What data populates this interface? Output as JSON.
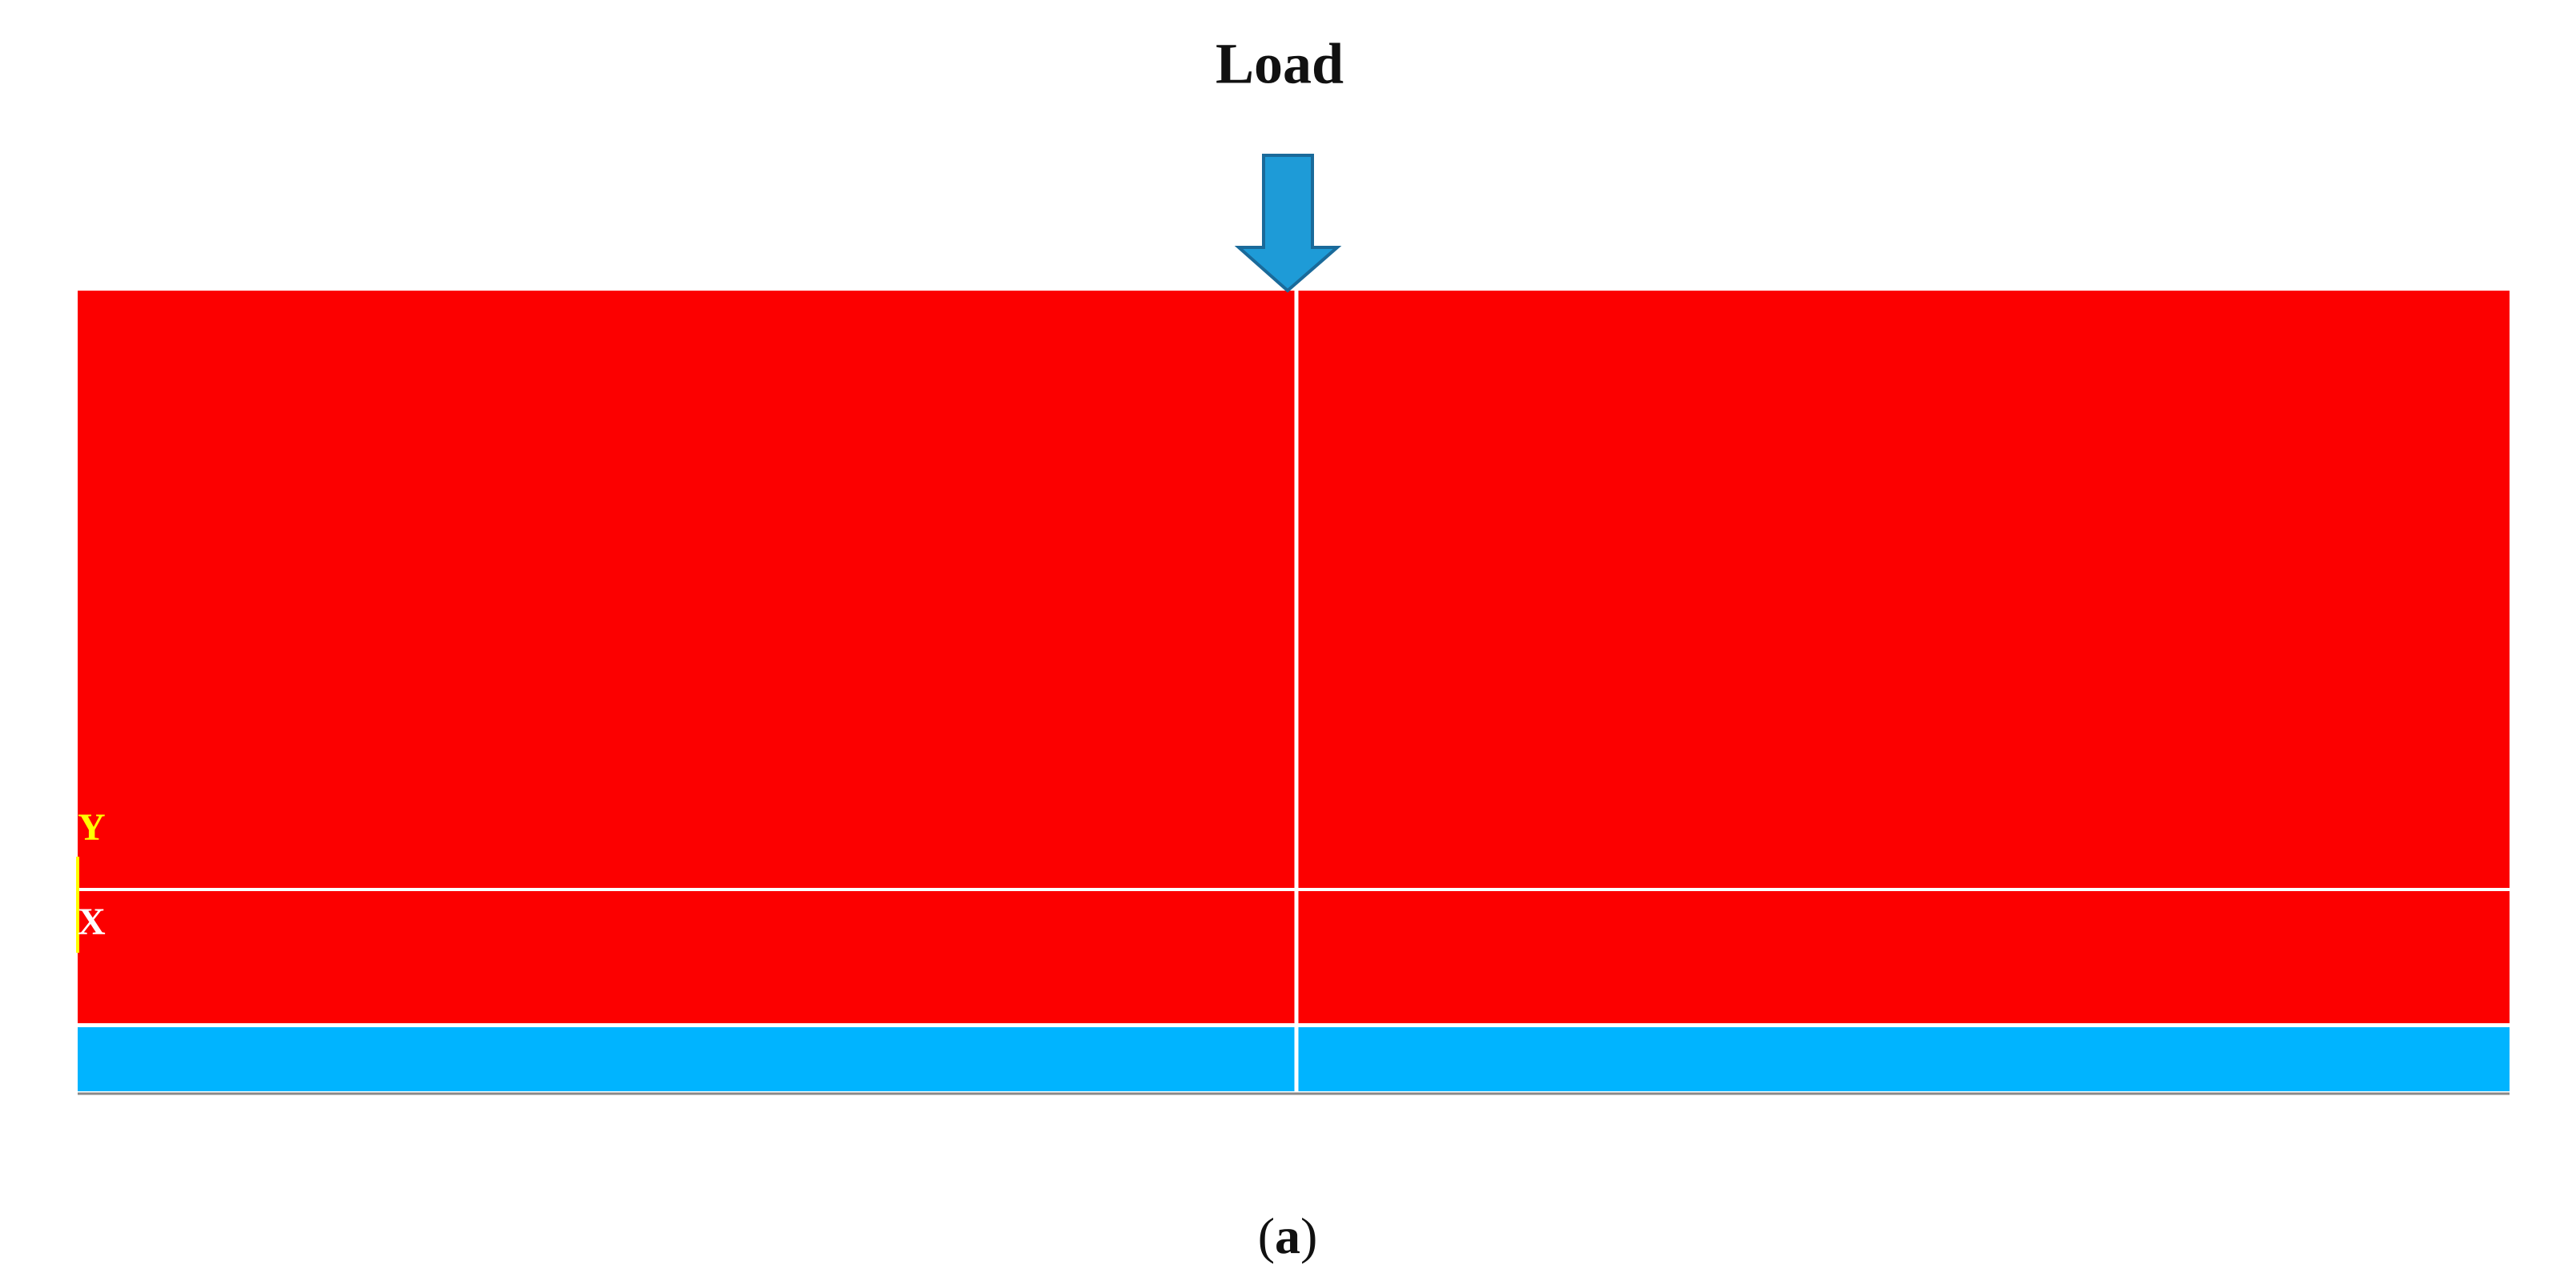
{
  "title": "Load",
  "axes": {
    "y": "Y",
    "x": "X"
  },
  "caption": [
    "(",
    "a",
    ")"
  ]
}
